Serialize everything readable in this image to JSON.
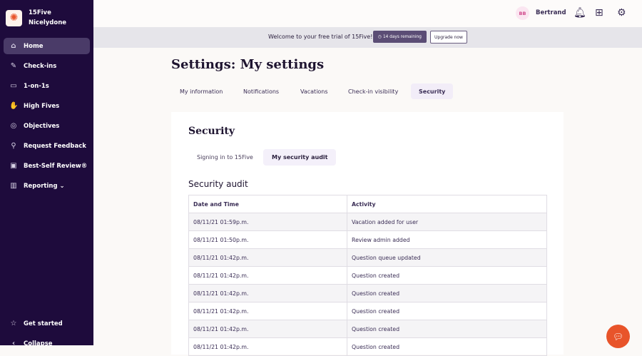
{
  "sidebar": {
    "org": "15Five",
    "company": "Nicelydone",
    "items": [
      {
        "label": "Home",
        "icon": "home-icon"
      },
      {
        "label": "Check-ins",
        "icon": "checkin-icon"
      },
      {
        "label": "1-on-1s",
        "icon": "chat-icon"
      },
      {
        "label": "High Fives",
        "icon": "high-five-icon"
      },
      {
        "label": "Objectives",
        "icon": "target-icon"
      },
      {
        "label": "Request Feedback",
        "icon": "feedback-icon"
      },
      {
        "label": "Best-Self Review®",
        "icon": "review-icon"
      },
      {
        "label": "Reporting ⌄",
        "icon": "chart-icon"
      }
    ],
    "bottom": [
      {
        "label": "Get started",
        "icon": "star-icon"
      },
      {
        "label": "Collapse",
        "icon": "collapse-icon"
      }
    ]
  },
  "topbar": {
    "initials": "BB",
    "user": "Bertrand"
  },
  "banner": {
    "welcome": "Welcome to your free trial of 15Five!",
    "days": "14 days remaining",
    "upgrade": "Upgrade now"
  },
  "page": {
    "title": "Settings: My settings",
    "tabs": [
      "My information",
      "Notifications",
      "Vacations",
      "Check-in visibility",
      "Security"
    ]
  },
  "card": {
    "title": "Security",
    "subtabs": [
      "Signing in to 15Five",
      "My security audit"
    ],
    "section": "Security audit",
    "columns": [
      "Date and Time",
      "Activity"
    ],
    "rows": [
      [
        "08/11/21 01:59p.m.",
        "Vacation added for user"
      ],
      [
        "08/11/21 01:50p.m.",
        "Review admin added"
      ],
      [
        "08/11/21 01:42p.m.",
        "Question queue updated"
      ],
      [
        "08/11/21 01:42p.m.",
        "Question created"
      ],
      [
        "08/11/21 01:42p.m.",
        "Question created"
      ],
      [
        "08/11/21 01:42p.m.",
        "Question created"
      ],
      [
        "08/11/21 01:42p.m.",
        "Question created"
      ],
      [
        "08/11/21 01:42p.m.",
        "Question created"
      ]
    ]
  },
  "colors": {
    "sidebar": "#1e0b3c",
    "accent": "#e8542a"
  }
}
